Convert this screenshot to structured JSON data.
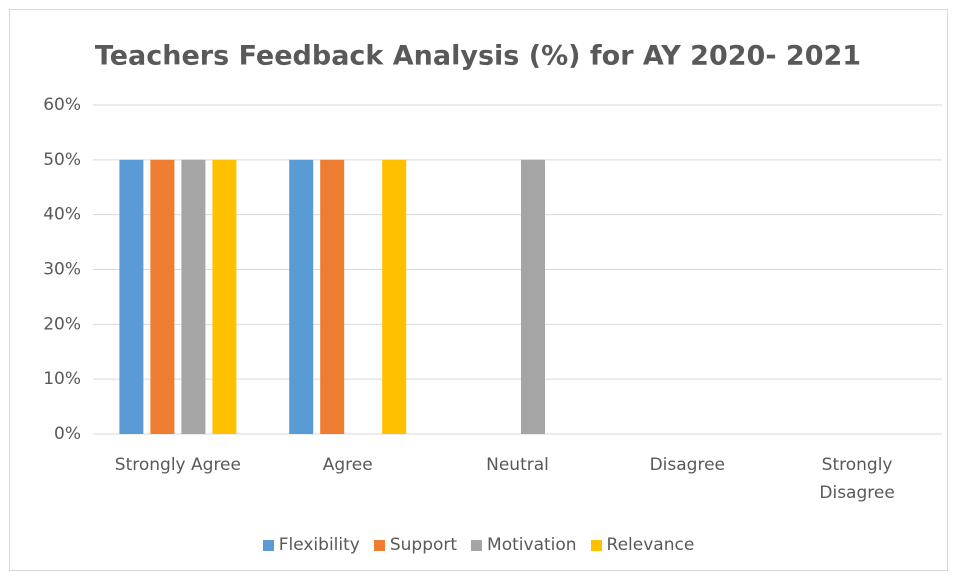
{
  "chart_data": {
    "type": "bar",
    "title": "Teachers Feedback Analysis (%) for AY 2020- 2021",
    "categories": [
      "Strongly Agree",
      "Agree",
      "Neutral",
      "Disagree",
      "Strongly Disagree"
    ],
    "series": [
      {
        "name": "Flexibility",
        "color": "#5b9bd5",
        "values": [
          50,
          50,
          0,
          0,
          0
        ]
      },
      {
        "name": "Support",
        "color": "#ed7d31",
        "values": [
          50,
          50,
          0,
          0,
          0
        ]
      },
      {
        "name": "Motivation",
        "color": "#a5a5a5",
        "values": [
          50,
          0,
          50,
          0,
          0
        ]
      },
      {
        "name": "Relevance",
        "color": "#ffc000",
        "values": [
          50,
          50,
          0,
          0,
          0
        ]
      }
    ],
    "ylim": [
      0,
      60
    ],
    "yticks": [
      {
        "value": 0,
        "label": "0%"
      },
      {
        "value": 10,
        "label": "10%"
      },
      {
        "value": 20,
        "label": "20%"
      },
      {
        "value": 30,
        "label": "30%"
      },
      {
        "value": 40,
        "label": "40%"
      },
      {
        "value": 50,
        "label": "50%"
      },
      {
        "value": 60,
        "label": "60%"
      }
    ],
    "grid": true,
    "legend": "bottom"
  }
}
